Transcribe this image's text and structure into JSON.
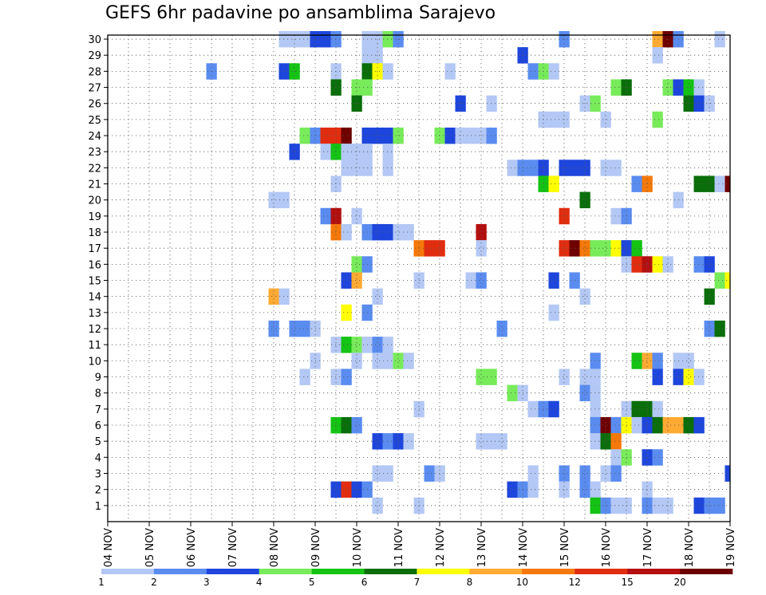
{
  "chart_data": {
    "type": "heatmap",
    "title": "GEFS 6hr padavine po ansamblima Sarajevo",
    "xlabel": "",
    "ylabel": "",
    "x_tick_labels": [
      "04 NOV",
      "05 NOV",
      "06 NOV",
      "07 NOV",
      "08 NOV",
      "09 NOV",
      "10 NOV",
      "11 NOV",
      "12 NOV",
      "13 NOV",
      "14 NOV",
      "15 NOV",
      "16 NOV",
      "17 NOV",
      "18 NOV",
      "19 NOV"
    ],
    "y_tick_labels": [
      "1",
      "2",
      "3",
      "4",
      "5",
      "6",
      "7",
      "8",
      "9",
      "10",
      "11",
      "12",
      "13",
      "14",
      "15",
      "16",
      "17",
      "18",
      "19",
      "20",
      "21",
      "22",
      "23",
      "24",
      "25",
      "26",
      "27",
      "28",
      "29",
      "30"
    ],
    "x_range_steps": [
      0,
      60
    ],
    "steps_per_day": 4,
    "y_range_members": [
      0,
      30
    ],
    "grid": true,
    "legend_position": "bottom",
    "color_scale": {
      "colors": [
        "#b4c8f5",
        "#5a8cf0",
        "#1e46dc",
        "#78eb5a",
        "#14c314",
        "#0a6e0a",
        "#ffff00",
        "#ffaa32",
        "#f5780a",
        "#e12d0f",
        "#b40f0f",
        "#6e0000"
      ],
      "labels": [
        "1",
        "2",
        "3",
        "4",
        "5",
        "6",
        "7",
        "8",
        "10",
        "12",
        "15",
        "20"
      ]
    },
    "cells_legend": "each cell = [member, 6h step index from 04 NOV 00Z, color class 0-11 (0 = lightest blue, 11 = darkest red)]",
    "cells": [
      [
        30,
        17,
        0
      ],
      [
        30,
        18,
        0
      ],
      [
        30,
        19,
        0
      ],
      [
        30,
        20,
        2
      ],
      [
        30,
        21,
        2
      ],
      [
        30,
        22,
        1
      ],
      [
        30,
        25,
        0
      ],
      [
        30,
        26,
        0
      ],
      [
        30,
        27,
        3
      ],
      [
        30,
        28,
        1
      ],
      [
        30,
        44,
        1
      ],
      [
        30,
        53,
        7
      ],
      [
        30,
        54,
        11
      ],
      [
        30,
        55,
        1
      ],
      [
        30,
        59,
        0
      ],
      [
        29,
        25,
        0
      ],
      [
        29,
        26,
        0
      ],
      [
        29,
        40,
        2
      ],
      [
        29,
        53,
        0
      ],
      [
        28,
        10,
        1
      ],
      [
        28,
        17,
        2
      ],
      [
        28,
        18,
        4
      ],
      [
        28,
        22,
        0
      ],
      [
        28,
        25,
        5
      ],
      [
        28,
        26,
        6
      ],
      [
        28,
        27,
        0
      ],
      [
        28,
        33,
        0
      ],
      [
        28,
        41,
        1
      ],
      [
        28,
        42,
        3
      ],
      [
        28,
        43,
        0
      ],
      [
        27,
        22,
        5
      ],
      [
        27,
        24,
        3
      ],
      [
        27,
        25,
        3
      ],
      [
        27,
        49,
        3
      ],
      [
        27,
        50,
        5
      ],
      [
        27,
        54,
        3
      ],
      [
        27,
        55,
        2
      ],
      [
        27,
        56,
        4
      ],
      [
        27,
        57,
        0
      ],
      [
        26,
        24,
        5
      ],
      [
        26,
        34,
        2
      ],
      [
        26,
        37,
        0
      ],
      [
        26,
        46,
        0
      ],
      [
        26,
        47,
        3
      ],
      [
        26,
        56,
        5
      ],
      [
        26,
        57,
        2
      ],
      [
        26,
        58,
        0
      ],
      [
        25,
        42,
        0
      ],
      [
        25,
        43,
        0
      ],
      [
        25,
        44,
        0
      ],
      [
        25,
        48,
        0
      ],
      [
        25,
        53,
        3
      ],
      [
        24,
        19,
        3
      ],
      [
        24,
        20,
        1
      ],
      [
        24,
        21,
        9
      ],
      [
        24,
        22,
        9
      ],
      [
        24,
        23,
        11
      ],
      [
        24,
        25,
        2
      ],
      [
        24,
        26,
        2
      ],
      [
        24,
        27,
        2
      ],
      [
        24,
        28,
        3
      ],
      [
        24,
        32,
        3
      ],
      [
        24,
        33,
        2
      ],
      [
        24,
        34,
        0
      ],
      [
        24,
        35,
        0
      ],
      [
        24,
        36,
        0
      ],
      [
        24,
        37,
        1
      ],
      [
        23,
        18,
        2
      ],
      [
        23,
        21,
        0
      ],
      [
        23,
        22,
        4
      ],
      [
        23,
        23,
        0
      ],
      [
        23,
        24,
        0
      ],
      [
        23,
        25,
        0
      ],
      [
        23,
        27,
        0
      ],
      [
        22,
        23,
        0
      ],
      [
        22,
        24,
        0
      ],
      [
        22,
        25,
        0
      ],
      [
        22,
        27,
        0
      ],
      [
        22,
        39,
        0
      ],
      [
        22,
        40,
        1
      ],
      [
        22,
        41,
        1
      ],
      [
        22,
        42,
        2
      ],
      [
        22,
        44,
        2
      ],
      [
        22,
        45,
        2
      ],
      [
        22,
        46,
        2
      ],
      [
        22,
        48,
        0
      ],
      [
        22,
        49,
        0
      ],
      [
        21,
        22,
        0
      ],
      [
        21,
        42,
        4
      ],
      [
        21,
        43,
        6
      ],
      [
        21,
        51,
        1
      ],
      [
        21,
        52,
        8
      ],
      [
        21,
        57,
        5
      ],
      [
        21,
        58,
        5
      ],
      [
        21,
        59,
        0
      ],
      [
        21,
        60,
        11
      ],
      [
        20,
        16,
        0
      ],
      [
        20,
        17,
        0
      ],
      [
        20,
        46,
        5
      ],
      [
        20,
        55,
        0
      ],
      [
        19,
        21,
        1
      ],
      [
        19,
        22,
        10
      ],
      [
        19,
        24,
        0
      ],
      [
        19,
        44,
        9
      ],
      [
        19,
        49,
        0
      ],
      [
        19,
        50,
        1
      ],
      [
        18,
        22,
        8
      ],
      [
        18,
        23,
        0
      ],
      [
        18,
        25,
        1
      ],
      [
        18,
        26,
        2
      ],
      [
        18,
        27,
        2
      ],
      [
        18,
        28,
        0
      ],
      [
        18,
        29,
        0
      ],
      [
        18,
        36,
        10
      ],
      [
        17,
        30,
        8
      ],
      [
        17,
        31,
        9
      ],
      [
        17,
        32,
        9
      ],
      [
        17,
        36,
        0
      ],
      [
        17,
        44,
        9
      ],
      [
        17,
        45,
        11
      ],
      [
        17,
        46,
        8
      ],
      [
        17,
        47,
        3
      ],
      [
        17,
        48,
        3
      ],
      [
        17,
        49,
        6
      ],
      [
        17,
        50,
        2
      ],
      [
        17,
        51,
        4
      ],
      [
        16,
        24,
        3
      ],
      [
        16,
        25,
        1
      ],
      [
        16,
        50,
        0
      ],
      [
        16,
        51,
        9
      ],
      [
        16,
        52,
        10
      ],
      [
        16,
        53,
        6
      ],
      [
        16,
        54,
        0
      ],
      [
        16,
        57,
        1
      ],
      [
        16,
        58,
        2
      ],
      [
        15,
        23,
        2
      ],
      [
        15,
        24,
        7
      ],
      [
        15,
        30,
        0
      ],
      [
        15,
        35,
        0
      ],
      [
        15,
        36,
        1
      ],
      [
        15,
        43,
        2
      ],
      [
        15,
        45,
        1
      ],
      [
        15,
        59,
        3
      ],
      [
        15,
        60,
        6
      ],
      [
        14,
        16,
        7
      ],
      [
        14,
        17,
        0
      ],
      [
        14,
        26,
        0
      ],
      [
        14,
        46,
        0
      ],
      [
        14,
        58,
        5
      ],
      [
        13,
        23,
        6
      ],
      [
        13,
        25,
        1
      ],
      [
        13,
        43,
        0
      ],
      [
        12,
        16,
        1
      ],
      [
        12,
        18,
        1
      ],
      [
        12,
        19,
        1
      ],
      [
        12,
        20,
        0
      ],
      [
        12,
        38,
        1
      ],
      [
        12,
        58,
        1
      ],
      [
        12,
        59,
        5
      ],
      [
        11,
        22,
        0
      ],
      [
        11,
        23,
        4
      ],
      [
        11,
        24,
        3
      ],
      [
        11,
        25,
        0
      ],
      [
        11,
        26,
        1
      ],
      [
        11,
        27,
        0
      ],
      [
        10,
        20,
        0
      ],
      [
        10,
        24,
        0
      ],
      [
        10,
        26,
        0
      ],
      [
        10,
        27,
        0
      ],
      [
        10,
        28,
        3
      ],
      [
        10,
        29,
        0
      ],
      [
        10,
        47,
        1
      ],
      [
        10,
        51,
        4
      ],
      [
        10,
        52,
        7
      ],
      [
        10,
        53,
        1
      ],
      [
        10,
        55,
        0
      ],
      [
        10,
        56,
        0
      ],
      [
        9,
        19,
        0
      ],
      [
        9,
        22,
        0
      ],
      [
        9,
        23,
        1
      ],
      [
        9,
        36,
        3
      ],
      [
        9,
        37,
        3
      ],
      [
        9,
        44,
        0
      ],
      [
        9,
        46,
        0
      ],
      [
        9,
        47,
        0
      ],
      [
        9,
        53,
        2
      ],
      [
        9,
        55,
        2
      ],
      [
        9,
        56,
        6
      ],
      [
        9,
        57,
        0
      ],
      [
        8,
        39,
        3
      ],
      [
        8,
        40,
        0
      ],
      [
        8,
        46,
        1
      ],
      [
        8,
        47,
        0
      ],
      [
        7,
        30,
        0
      ],
      [
        7,
        41,
        0
      ],
      [
        7,
        42,
        1
      ],
      [
        7,
        43,
        2
      ],
      [
        7,
        47,
        0
      ],
      [
        7,
        50,
        0
      ],
      [
        7,
        51,
        5
      ],
      [
        7,
        52,
        5
      ],
      [
        7,
        53,
        0
      ],
      [
        6,
        22,
        4
      ],
      [
        6,
        23,
        5
      ],
      [
        6,
        24,
        1
      ],
      [
        6,
        47,
        1
      ],
      [
        6,
        48,
        11
      ],
      [
        6,
        49,
        1
      ],
      [
        6,
        50,
        6
      ],
      [
        6,
        51,
        0
      ],
      [
        6,
        52,
        2
      ],
      [
        6,
        53,
        5
      ],
      [
        6,
        54,
        7
      ],
      [
        6,
        55,
        7
      ],
      [
        6,
        56,
        5
      ],
      [
        6,
        57,
        2
      ],
      [
        5,
        26,
        2
      ],
      [
        5,
        27,
        1
      ],
      [
        5,
        28,
        2
      ],
      [
        5,
        29,
        0
      ],
      [
        5,
        36,
        0
      ],
      [
        5,
        37,
        0
      ],
      [
        5,
        38,
        0
      ],
      [
        5,
        47,
        0
      ],
      [
        5,
        48,
        5
      ],
      [
        5,
        49,
        8
      ],
      [
        4,
        49,
        0
      ],
      [
        4,
        50,
        3
      ],
      [
        4,
        52,
        2
      ],
      [
        4,
        53,
        1
      ],
      [
        3,
        26,
        0
      ],
      [
        3,
        27,
        0
      ],
      [
        3,
        31,
        1
      ],
      [
        3,
        32,
        0
      ],
      [
        3,
        41,
        0
      ],
      [
        3,
        44,
        1
      ],
      [
        3,
        46,
        1
      ],
      [
        3,
        48,
        0
      ],
      [
        3,
        49,
        1
      ],
      [
        3,
        60,
        2
      ],
      [
        2,
        22,
        2
      ],
      [
        2,
        23,
        9
      ],
      [
        2,
        24,
        2
      ],
      [
        2,
        25,
        1
      ],
      [
        2,
        39,
        2
      ],
      [
        2,
        40,
        1
      ],
      [
        2,
        41,
        0
      ],
      [
        2,
        44,
        0
      ],
      [
        2,
        46,
        1
      ],
      [
        2,
        47,
        0
      ],
      [
        2,
        52,
        0
      ],
      [
        1,
        26,
        0
      ],
      [
        1,
        30,
        0
      ],
      [
        1,
        47,
        4
      ],
      [
        1,
        48,
        1
      ],
      [
        1,
        49,
        0
      ],
      [
        1,
        50,
        0
      ],
      [
        1,
        52,
        1
      ],
      [
        1,
        53,
        0
      ],
      [
        1,
        54,
        0
      ],
      [
        1,
        57,
        2
      ],
      [
        1,
        58,
        1
      ],
      [
        1,
        59,
        1
      ]
    ]
  }
}
